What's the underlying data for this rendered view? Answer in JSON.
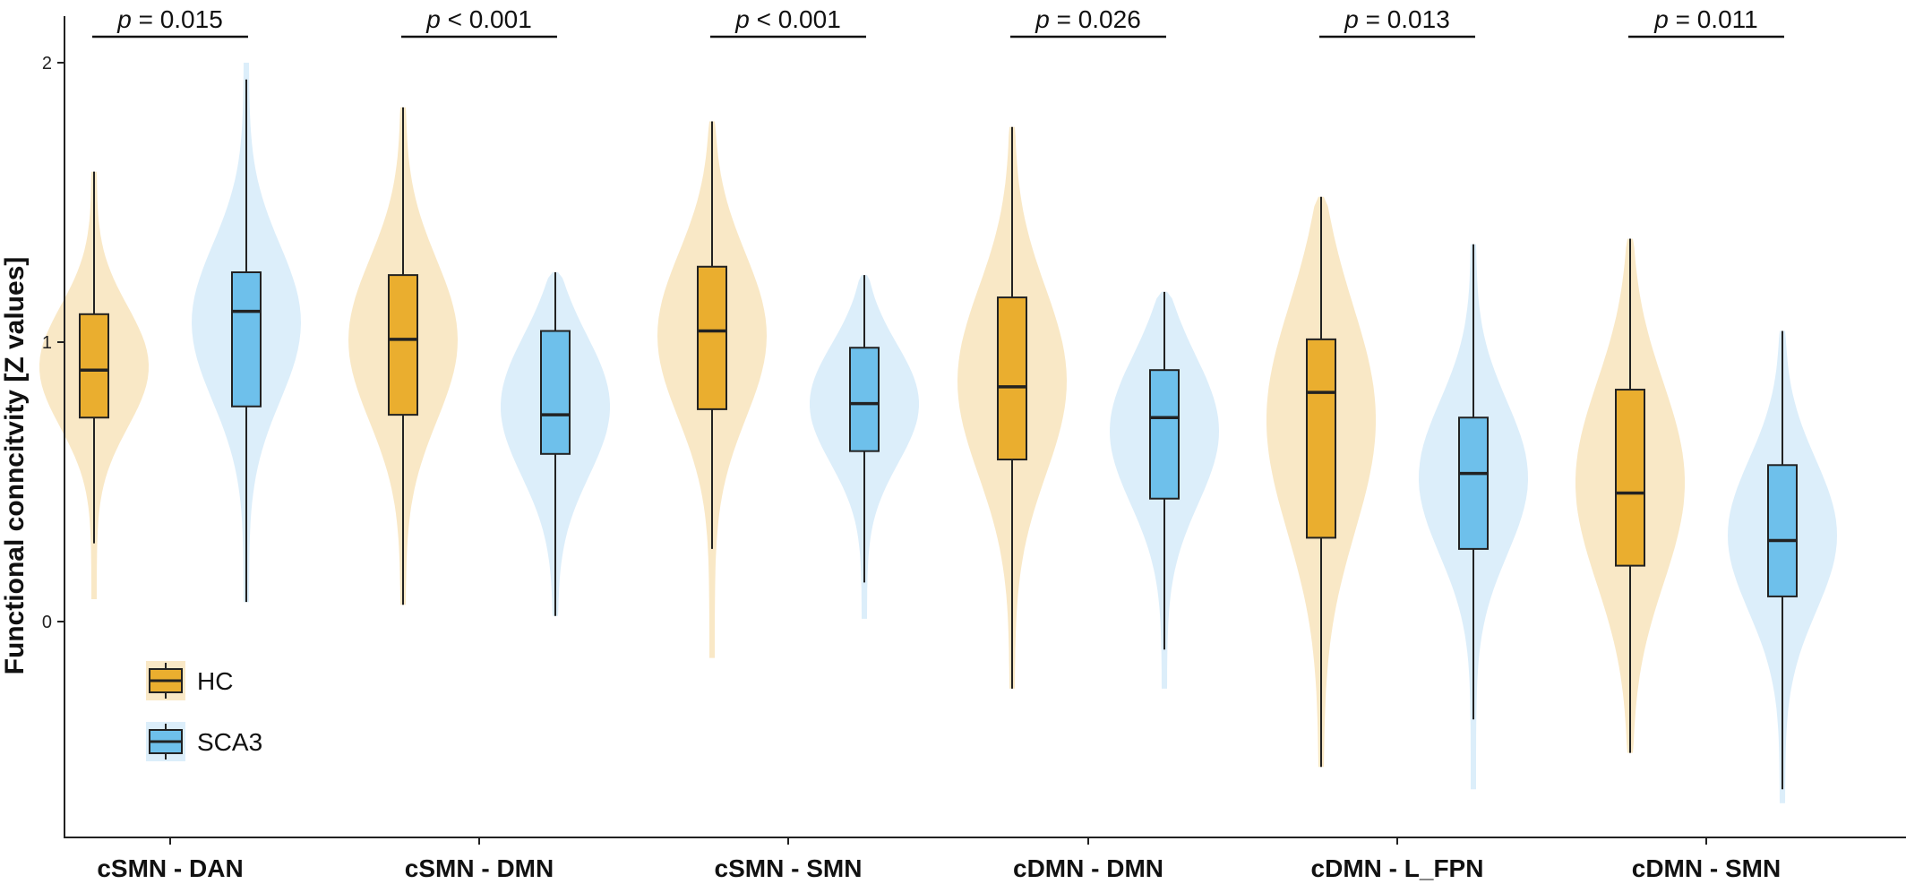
{
  "chart_data": {
    "type": "violin-box",
    "ylabel": "Functional conncitvity [Z values]",
    "xlabel": "",
    "ylim": [
      -0.78,
      2.08
    ],
    "yticks": [
      0,
      1,
      2
    ],
    "grid": false,
    "legend_placement": "bottom-left",
    "categories": [
      "cSMN - DAN",
      "cSMN - DMN",
      "cSMN - SMN",
      "cDMN - DMN",
      "cDMN - L_FPN",
      "cDMN - SMN"
    ],
    "series": [
      {
        "name": "HC",
        "color": "#EAAE2F",
        "violin_color": "#F9E8C6",
        "stats": [
          {
            "min": 0.28,
            "q1": 0.73,
            "median": 0.9,
            "q3": 1.1,
            "max": 1.61,
            "vmin": 0.08,
            "vmax": 1.61
          },
          {
            "min": 0.06,
            "q1": 0.74,
            "median": 1.01,
            "q3": 1.24,
            "max": 1.84,
            "vmin": 0.06,
            "vmax": 1.84
          },
          {
            "min": 0.26,
            "q1": 0.76,
            "median": 1.04,
            "q3": 1.27,
            "max": 1.79,
            "vmin": -0.13,
            "vmax": 1.79
          },
          {
            "min": -0.24,
            "q1": 0.58,
            "median": 0.84,
            "q3": 1.16,
            "max": 1.77,
            "vmin": -0.24,
            "vmax": 1.77
          },
          {
            "min": -0.52,
            "q1": 0.3,
            "median": 0.82,
            "q3": 1.01,
            "max": 1.52,
            "vmin": -0.52,
            "vmax": 1.52
          },
          {
            "min": -0.47,
            "q1": 0.2,
            "median": 0.46,
            "q3": 0.83,
            "max": 1.37,
            "vmin": -0.47,
            "vmax": 1.37
          }
        ]
      },
      {
        "name": "SCA3",
        "color": "#6EC0EB",
        "violin_color": "#DCEEFA",
        "stats": [
          {
            "min": 0.07,
            "q1": 0.77,
            "median": 1.11,
            "q3": 1.25,
            "max": 1.94,
            "vmin": 0.07,
            "vmax": 2.0
          },
          {
            "min": 0.02,
            "q1": 0.6,
            "median": 0.74,
            "q3": 1.04,
            "max": 1.25,
            "vmin": 0.02,
            "vmax": 1.25
          },
          {
            "min": 0.14,
            "q1": 0.61,
            "median": 0.78,
            "q3": 0.98,
            "max": 1.24,
            "vmin": 0.01,
            "vmax": 1.24
          },
          {
            "min": -0.1,
            "q1": 0.44,
            "median": 0.73,
            "q3": 0.9,
            "max": 1.18,
            "vmin": -0.24,
            "vmax": 1.18
          },
          {
            "min": -0.35,
            "q1": 0.26,
            "median": 0.53,
            "q3": 0.73,
            "max": 1.35,
            "vmin": -0.6,
            "vmax": 1.35
          },
          {
            "min": -0.6,
            "q1": 0.09,
            "median": 0.29,
            "q3": 0.56,
            "max": 1.04,
            "vmin": -0.65,
            "vmax": 1.04
          }
        ]
      }
    ],
    "annotations": [
      {
        "category": "cSMN - DAN",
        "p_symbol": "p",
        "p_rest": " = 0.015"
      },
      {
        "category": "cSMN - DMN",
        "p_symbol": "p",
        "p_rest": " < 0.001"
      },
      {
        "category": "cSMN - SMN",
        "p_symbol": "p",
        "p_rest": " < 0.001"
      },
      {
        "category": "cDMN - DMN",
        "p_symbol": "p",
        "p_rest": " = 0.026"
      },
      {
        "category": "cDMN - L_FPN",
        "p_symbol": "p",
        "p_rest": " = 0.013"
      },
      {
        "category": "cDMN - SMN",
        "p_symbol": "p",
        "p_rest": " = 0.011"
      }
    ]
  }
}
